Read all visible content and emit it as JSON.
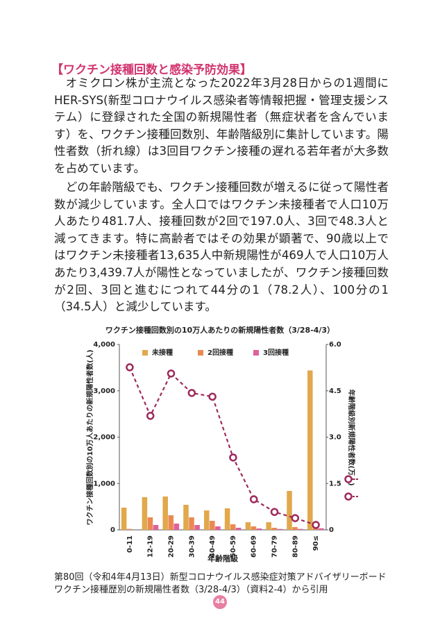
{
  "heading": "【ワクチン接種回数と感染予防効果】",
  "paragraphs": [
    "オミクロン株が主流となった2022年3月28日からの1週間にHER-SYS(新型コロナウイルス感染者等情報把握・管理支援システム）に登録された全国の新規陽性者（無症状者を含んでいます）を、ワクチン接種回数別、年齢階級別に集計しています。陽性者数（折れ線）は3回目ワクチン接種の遅れる若年者が大多数を占めています。",
    "どの年齢階級でも、ワクチン接種回数が増えるに従って陽性者数が減少しています。全人口ではワクチン未接種者で人口10万人あたり481.7人、接種回数が2回で197.0人、3回で48.3人と減ってきます。特に高齢者ではその効果が顕著で、90歳以上ではワクチン未接種者13,635人中新規陽性が469人で人口10万人あたり3,439.7人が陽性となっていましたが、ワクチン接種回数が2回、3回と進むにつれて44分の1（78.2人）、100分の1（34.5人）と減少しています。"
  ],
  "chart_data": {
    "type": "bar",
    "title": "ワクチン接種回数別の10万人あたりの新規陽性者数（3/28-4/3）",
    "x_label": "年齢階級",
    "y_label": "ワクチン接種回数別の10万人あたりの新規陽性者数(人)",
    "y2_label": "年齢階級別新規陽性者数(万人)",
    "categories": [
      "0-11",
      "12-19",
      "20-29",
      "30-39",
      "40-49",
      "50-59",
      "60-69",
      "70-79",
      "80-89",
      "90≤"
    ],
    "series": [
      {
        "name": "未接種",
        "color": "#e2a84c",
        "values": [
          480,
          705,
          720,
          540,
          420,
          465,
          165,
          165,
          840,
          3439.7
        ]
      },
      {
        "name": "2回接種",
        "color": "#ea8a52",
        "values": [
          20,
          270,
          315,
          270,
          195,
          120,
          75,
          45,
          60,
          78.2
        ]
      },
      {
        "name": "3回接種",
        "color": "#e0609a",
        "values": [
          0,
          105,
          135,
          105,
          75,
          45,
          30,
          20,
          20,
          34.5
        ]
      },
      {
        "type": "line",
        "axis": "y2",
        "color": "#9c2a5c",
        "values": [
          5.26,
          3.69,
          5.06,
          4.43,
          4.31,
          2.34,
          0.99,
          0.58,
          0.38,
          0.16
        ]
      }
    ],
    "ylim": [
      0,
      4000
    ],
    "yticks": [
      0,
      {
        "value": 1000,
        "label": "1,000"
      },
      {
        "value": 2000,
        "label": "2,000"
      },
      {
        "value": 3000,
        "label": "3,000"
      },
      {
        "value": 4000,
        "label": "4,000"
      }
    ],
    "y2lim": [
      0,
      6
    ],
    "y2ticks": [
      0,
      1.5,
      {
        "value": 3,
        "label": "3.0"
      },
      4.5,
      {
        "value": 6,
        "label": "6.0"
      }
    ],
    "grid": false,
    "legend": "top"
  },
  "caption": [
    "第80回（令和4年4月13日）新型コロナウイルス感染症対策アドバイザリーボード",
    "ワクチン接種歴別の新規陽性者数（3/28-4/3）（資料2-4）から引用"
  ],
  "page_number": "44"
}
